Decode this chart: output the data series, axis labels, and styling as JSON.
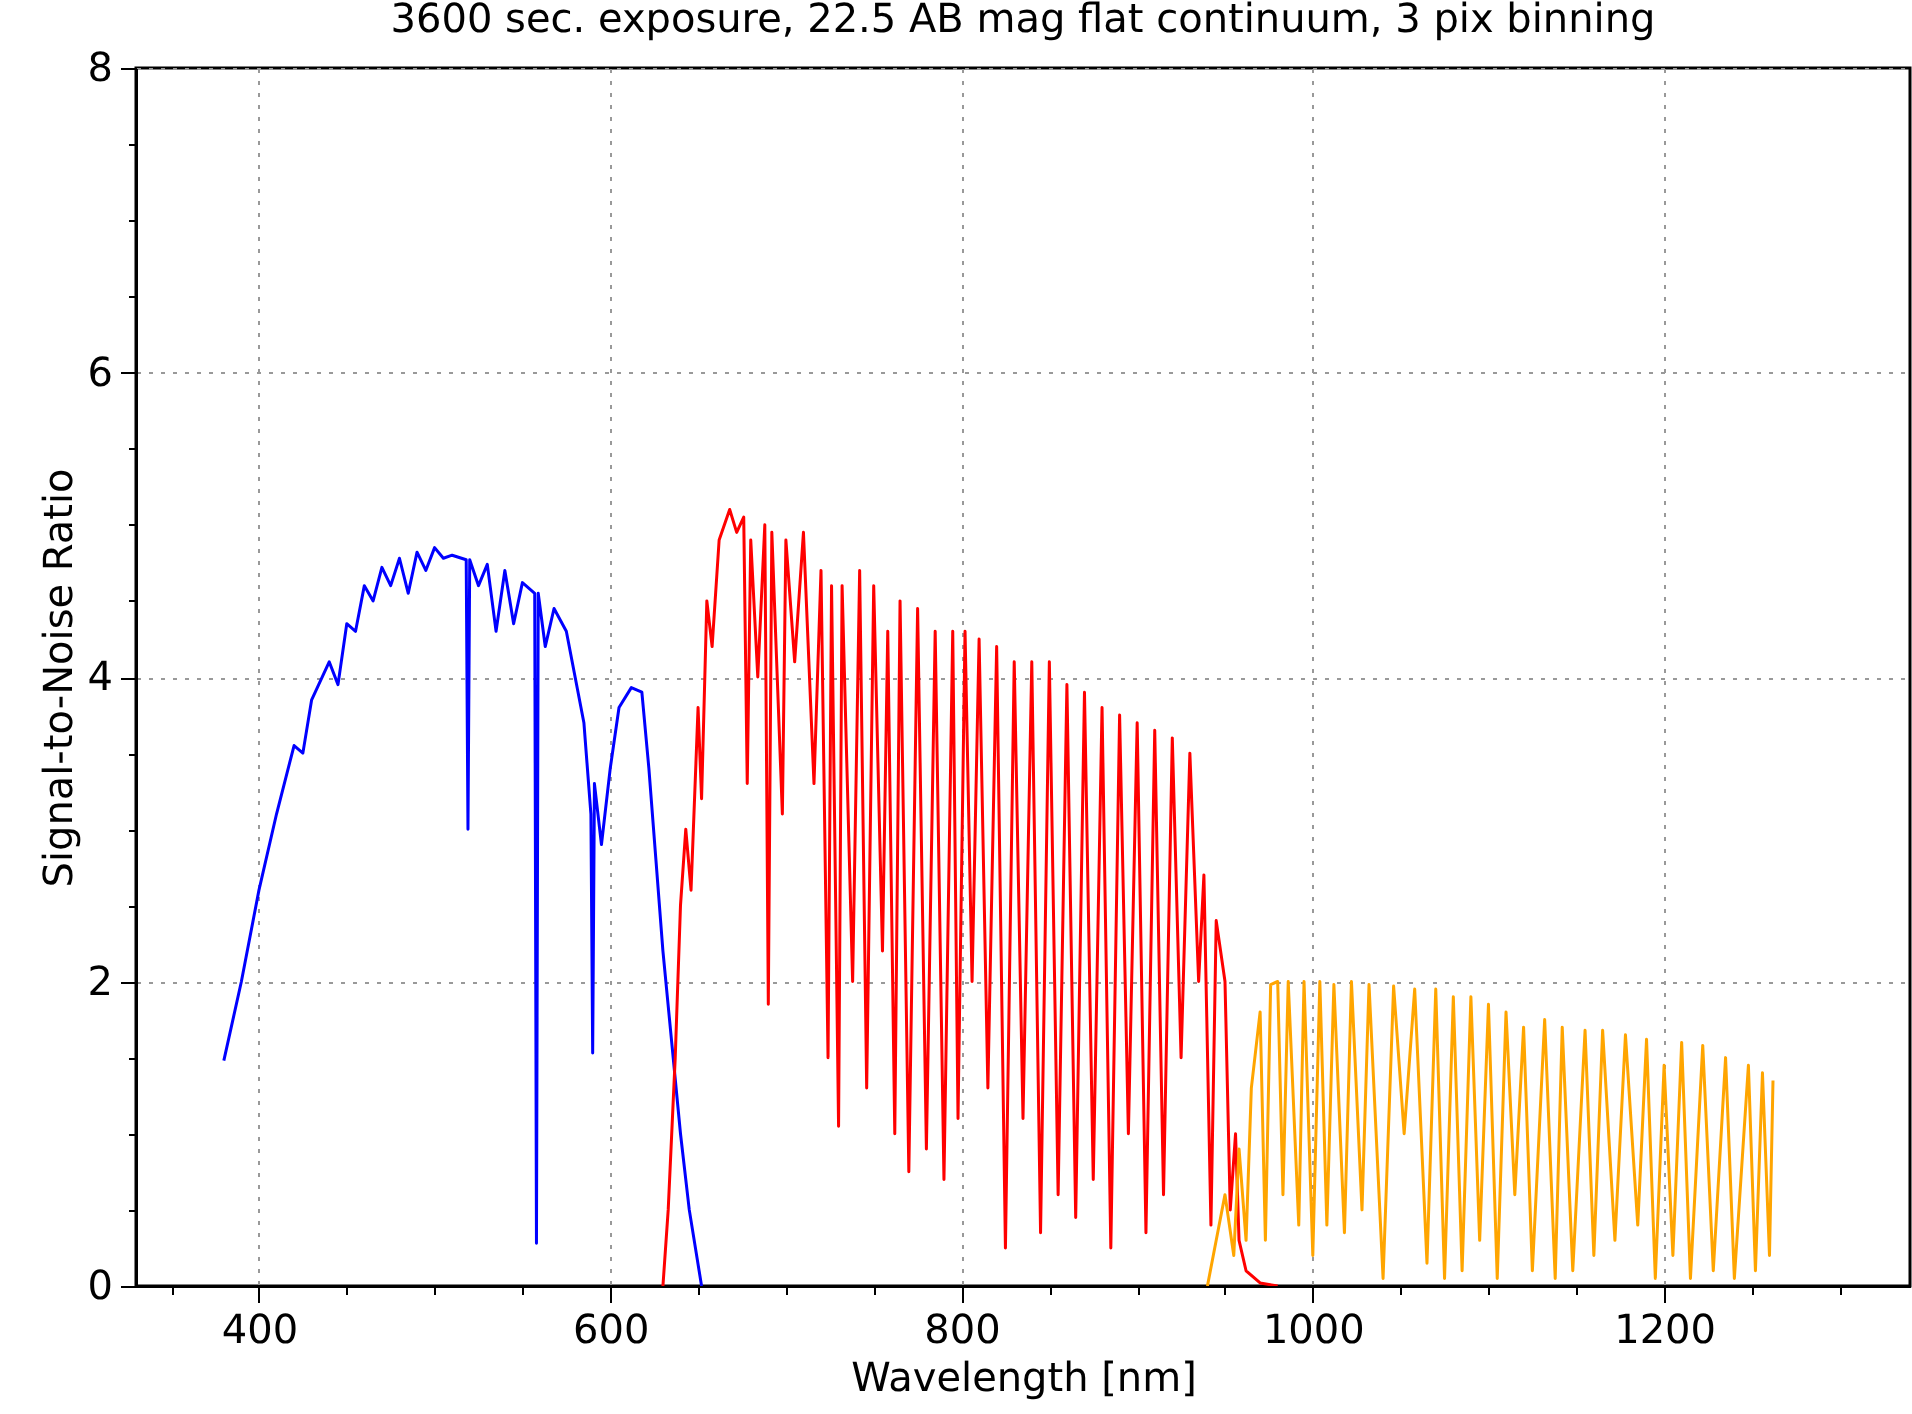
{
  "chart_data": {
    "type": "line",
    "title": "3600 sec. exposure, 22.5 AB mag flat continuum, 3 pix binning",
    "xlabel": "Wavelength [nm]",
    "ylabel": "Signal-to-Noise Ratio",
    "xlim": [
      330,
      1340
    ],
    "ylim": [
      0,
      8
    ],
    "xticks": [
      {
        "value": 350,
        "label": null
      },
      400,
      {
        "value": 450,
        "label": null
      },
      {
        "value": 500,
        "label": null
      },
      {
        "value": 550,
        "label": null
      },
      600,
      {
        "value": 650,
        "label": null
      },
      {
        "value": 700,
        "label": null
      },
      {
        "value": 750,
        "label": null
      },
      800,
      {
        "value": 850,
        "label": null
      },
      {
        "value": 900,
        "label": null
      },
      {
        "value": 950,
        "label": null
      },
      1000,
      {
        "value": 1050,
        "label": null
      },
      {
        "value": 1100,
        "label": null
      },
      {
        "value": 1150,
        "label": null
      },
      1200,
      {
        "value": 1250,
        "label": null
      },
      {
        "value": 1300,
        "label": null
      }
    ],
    "yticks": [
      0,
      {
        "value": 0.5,
        "label": null
      },
      {
        "value": 1,
        "label": null
      },
      {
        "value": 1.5,
        "label": null
      },
      2,
      {
        "value": 2.5,
        "label": null
      },
      {
        "value": 3,
        "label": null
      },
      {
        "value": 3.5,
        "label": null
      },
      4,
      {
        "value": 4.5,
        "label": null
      },
      {
        "value": 5,
        "label": null
      },
      {
        "value": 5.5,
        "label": null
      },
      6,
      {
        "value": 6.5,
        "label": null
      },
      {
        "value": 7,
        "label": null
      },
      {
        "value": 7.5,
        "label": null
      },
      8
    ],
    "grid": true,
    "marker": "none",
    "line_style": "solid",
    "series": [
      {
        "color": "#0000ff",
        "x": [
          380,
          390,
          400,
          410,
          420,
          425,
          430,
          440,
          445,
          450,
          455,
          460,
          465,
          470,
          475,
          480,
          485,
          490,
          495,
          500,
          505,
          510,
          518,
          519,
          520,
          525,
          530,
          535,
          540,
          545,
          550,
          557,
          558,
          559,
          563,
          568,
          575,
          580,
          585,
          589,
          590,
          591,
          595,
          600,
          605,
          612,
          618,
          622,
          626,
          630,
          635,
          640,
          645,
          652
        ],
        "values": [
          1.48,
          2.0,
          2.6,
          3.1,
          3.55,
          3.5,
          3.85,
          4.1,
          3.95,
          4.35,
          4.3,
          4.6,
          4.5,
          4.72,
          4.6,
          4.78,
          4.55,
          4.82,
          4.7,
          4.85,
          4.78,
          4.8,
          4.77,
          3.0,
          4.77,
          4.6,
          4.74,
          4.3,
          4.7,
          4.35,
          4.62,
          4.55,
          0.28,
          4.55,
          4.2,
          4.45,
          4.3,
          4.0,
          3.7,
          3.1,
          1.53,
          3.3,
          2.9,
          3.4,
          3.8,
          3.93,
          3.9,
          3.4,
          2.8,
          2.2,
          1.6,
          1.0,
          0.5,
          0
        ]
      },
      {
        "color": "#ff0000",
        "x": [
          630,
          633,
          637,
          640,
          643,
          646,
          650,
          652,
          655,
          658,
          662,
          668,
          672,
          676,
          678,
          680,
          684,
          688,
          690,
          692,
          698,
          700,
          705,
          710,
          716,
          720,
          724,
          726,
          730,
          732,
          738,
          742,
          746,
          750,
          755,
          758,
          762,
          765,
          770,
          775,
          780,
          785,
          790,
          795,
          798,
          802,
          806,
          810,
          815,
          820,
          825,
          830,
          835,
          840,
          845,
          850,
          855,
          860,
          865,
          870,
          875,
          880,
          885,
          890,
          895,
          900,
          905,
          910,
          915,
          920,
          925,
          930,
          935,
          938,
          942,
          945,
          950,
          953,
          956,
          958,
          962,
          970,
          980
        ],
        "values": [
          0,
          0.5,
          1.5,
          2.5,
          3.0,
          2.6,
          3.8,
          3.2,
          4.5,
          4.2,
          4.9,
          5.1,
          4.95,
          5.05,
          3.3,
          4.9,
          4.0,
          5.0,
          1.85,
          4.95,
          3.1,
          4.9,
          4.1,
          4.95,
          3.3,
          4.7,
          1.5,
          4.6,
          1.05,
          4.6,
          2.0,
          4.7,
          1.3,
          4.6,
          2.2,
          4.3,
          1.0,
          4.5,
          0.75,
          4.45,
          0.9,
          4.3,
          0.7,
          4.3,
          1.1,
          4.3,
          2.0,
          4.25,
          1.3,
          4.2,
          0.25,
          4.1,
          1.1,
          4.1,
          0.35,
          4.1,
          0.6,
          3.95,
          0.45,
          3.9,
          0.7,
          3.8,
          0.25,
          3.75,
          1.0,
          3.7,
          0.35,
          3.65,
          0.6,
          3.6,
          1.5,
          3.5,
          2.0,
          2.7,
          0.4,
          2.4,
          2.0,
          0.5,
          1.0,
          0.3,
          0.1,
          0.02,
          0
        ]
      },
      {
        "color": "#ffa500",
        "x": [
          940,
          945,
          950,
          955,
          958,
          962,
          965,
          970,
          973,
          976,
          980,
          983,
          986,
          992,
          995,
          1000,
          1004,
          1008,
          1012,
          1018,
          1022,
          1028,
          1032,
          1040,
          1046,
          1052,
          1058,
          1065,
          1070,
          1075,
          1080,
          1085,
          1090,
          1095,
          1100,
          1105,
          1110,
          1115,
          1120,
          1125,
          1132,
          1138,
          1142,
          1148,
          1155,
          1160,
          1165,
          1172,
          1178,
          1185,
          1190,
          1195,
          1200,
          1205,
          1210,
          1215,
          1222,
          1228,
          1235,
          1240,
          1248,
          1252,
          1256,
          1260,
          1262
        ],
        "values": [
          0,
          0.3,
          0.6,
          0.2,
          0.9,
          0.3,
          1.3,
          1.8,
          0.3,
          1.98,
          2.0,
          0.6,
          2.0,
          0.4,
          2.0,
          0.2,
          2.0,
          0.4,
          1.98,
          0.35,
          2.0,
          0.5,
          1.98,
          0.05,
          1.97,
          1.0,
          1.95,
          0.15,
          1.95,
          0.05,
          1.9,
          0.1,
          1.9,
          0.3,
          1.85,
          0.05,
          1.8,
          0.6,
          1.7,
          0.1,
          1.75,
          0.05,
          1.7,
          0.1,
          1.68,
          0.2,
          1.68,
          0.3,
          1.65,
          0.4,
          1.62,
          0.05,
          1.45,
          0.2,
          1.6,
          0.05,
          1.58,
          0.1,
          1.5,
          0.05,
          1.45,
          0.1,
          1.4,
          0.2,
          1.35
        ]
      }
    ]
  }
}
